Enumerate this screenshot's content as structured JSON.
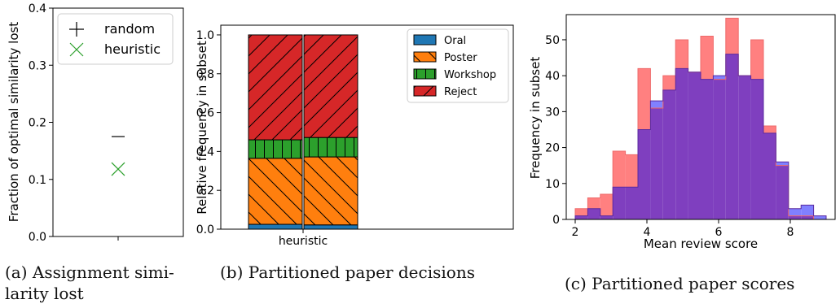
{
  "captions": {
    "a": "(a) Assignment simi- larity lost",
    "b": "(b) Partitioned paper decisions",
    "c": "(c) Partitioned paper scores"
  },
  "colors": {
    "random": "#000000",
    "heuristic": "#2ca02c",
    "oral": "#1f77b4",
    "poster": "#ff7f0e",
    "workshop": "#2ca02c",
    "reject": "#d62728",
    "hist_red": "#ff8080",
    "hist_blue": "#8080ff",
    "hist_overlap": "#7f3fbf"
  },
  "chart_data": [
    {
      "type": "scatter",
      "ylabel": "Fraction of optimal similarity lost",
      "ylim": [
        0.0,
        0.4
      ],
      "yticks": [
        "0.0",
        "0.1",
        "0.2",
        "0.3",
        "0.4"
      ],
      "grid": false,
      "legend_position": "top",
      "series": [
        {
          "name": "random",
          "marker": "+",
          "y": 0.175
        },
        {
          "name": "heuristic",
          "marker": "x",
          "y": 0.118
        }
      ]
    },
    {
      "type": "bar",
      "stacked": true,
      "xticklabels": [
        "heuristic"
      ],
      "ylabel": "Relative frequency in subset",
      "ylim": [
        0.0,
        1.05
      ],
      "yticks": [
        "0.0",
        "0.2",
        "0.4",
        "0.6",
        "0.8",
        "1.0"
      ],
      "legend_position": "top-right",
      "categories": [
        "Oral",
        "Poster",
        "Workshop",
        "Reject"
      ],
      "bars": [
        {
          "values": [
            0.025,
            0.34,
            0.095,
            0.54
          ]
        },
        {
          "values": [
            0.022,
            0.35,
            0.1,
            0.528
          ]
        }
      ]
    },
    {
      "type": "histogram",
      "xlabel": "Mean review score",
      "ylabel": "Frequency in subset",
      "xlim": [
        1.75,
        9.25
      ],
      "ylim": [
        0,
        57
      ],
      "xticks": [
        "2",
        "4",
        "6",
        "8"
      ],
      "yticks": [
        "0",
        "10",
        "20",
        "30",
        "40",
        "50"
      ],
      "bin_edges": [
        2.0,
        2.35,
        2.7,
        3.05,
        3.4,
        3.75,
        4.1,
        4.45,
        4.8,
        5.15,
        5.5,
        5.85,
        6.2,
        6.55,
        6.9,
        7.25,
        7.6,
        7.95,
        8.3,
        8.65,
        9.0
      ],
      "series": [
        {
          "values": [
            3,
            6,
            7,
            19,
            18,
            42,
            31,
            40,
            50,
            41,
            51,
            39,
            56,
            40,
            50,
            26,
            15,
            1,
            1,
            0
          ]
        },
        {
          "values": [
            1,
            3,
            1,
            9,
            9,
            25,
            33,
            36,
            42,
            41,
            39,
            40,
            46,
            40,
            39,
            24,
            16,
            3,
            4,
            1
          ]
        }
      ]
    }
  ]
}
